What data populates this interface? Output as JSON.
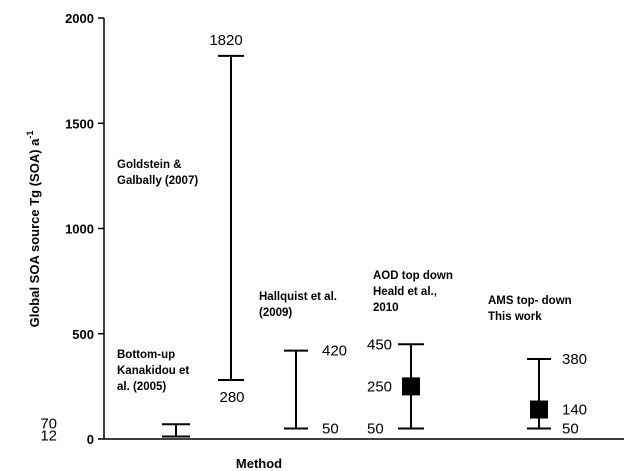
{
  "chart_data": {
    "type": "errorbar",
    "title": "",
    "xlabel": "Method",
    "ylabel_main": "Global SOA source Tg (SOA) a",
    "ylabel_sup": "-1",
    "ylim": [
      0,
      2000
    ],
    "yticks": [
      0,
      500,
      1000,
      1500,
      2000
    ],
    "grid": false,
    "series": [
      {
        "labels": [
          "Bottom-up",
          "Kanakidou et",
          "al. (2005)"
        ],
        "low": 12,
        "high": 70,
        "central": null,
        "low_label": "12",
        "high_label": "70",
        "central_label": ""
      },
      {
        "labels": [
          "Goldstein &",
          "Galbally (2007)"
        ],
        "low": 280,
        "high": 1820,
        "central": null,
        "low_label": "280",
        "high_label": "1820",
        "central_label": ""
      },
      {
        "labels": [
          "Hallquist et al.",
          "(2009)"
        ],
        "low": 50,
        "high": 420,
        "central": null,
        "low_label": "50",
        "high_label": "420",
        "central_label": ""
      },
      {
        "labels": [
          "AOD top down",
          "Heald et al.,",
          "2010"
        ],
        "low": 50,
        "high": 450,
        "central": 250,
        "low_label": "50",
        "high_label": "450",
        "central_label": "250"
      },
      {
        "labels": [
          "AMS top- down",
          "This work"
        ],
        "low": 50,
        "high": 380,
        "central": 140,
        "low_label": "50",
        "high_label": "380",
        "central_label": "140"
      }
    ]
  }
}
